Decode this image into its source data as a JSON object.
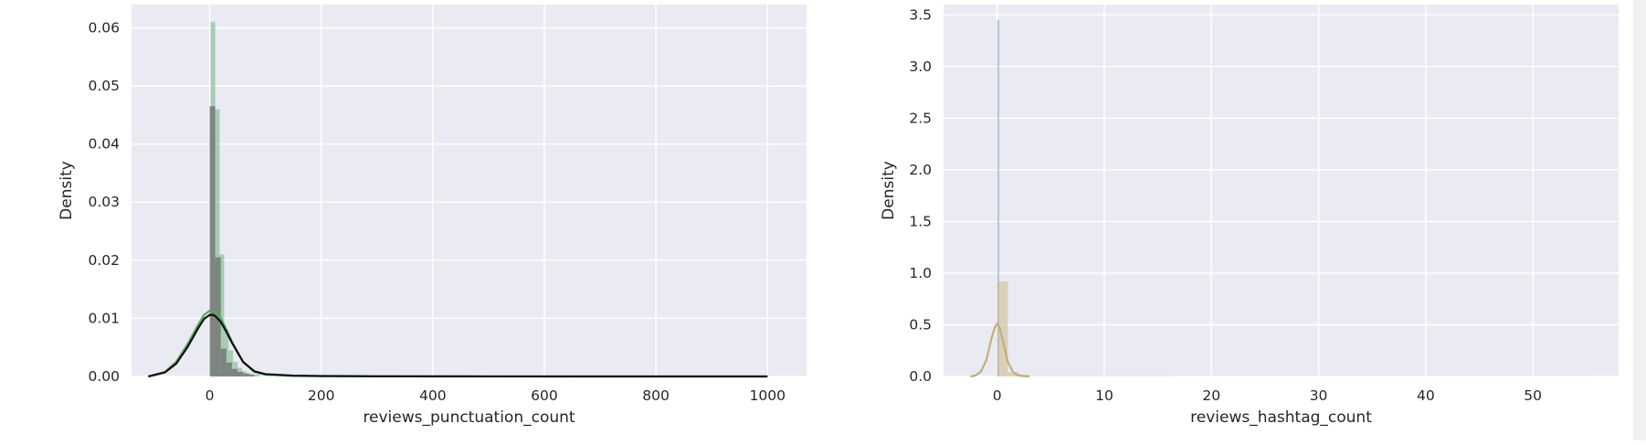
{
  "chart_data": [
    {
      "type": "histogram",
      "xlabel": "reviews_punctuation_count",
      "ylabel": "Density",
      "xlim": [
        -140,
        1070
      ],
      "ylim": [
        0,
        0.064
      ],
      "xticks": [
        0,
        200,
        400,
        600,
        800,
        1000
      ],
      "yticks": [
        0.0,
        0.01,
        0.02,
        0.03,
        0.04,
        0.05,
        0.06
      ],
      "ytick_labels": [
        "0.00",
        "0.01",
        "0.02",
        "0.03",
        "0.04",
        "0.05",
        "0.06"
      ],
      "grid": true,
      "colors": {
        "plot_bg": "#eaeaf2",
        "grid": "#ffffff",
        "hist_green": "#55a868",
        "hist_gray": "#6e6e6e",
        "kde_green": "#55a868",
        "kde_black": "#111111"
      },
      "series": [
        {
          "kind": "hist",
          "color": "#55a868",
          "opacity": 0.45,
          "bins": [
            {
              "x0": 2,
              "x1": 10,
              "y": 0.061
            },
            {
              "x0": 10,
              "x1": 18,
              "y": 0.046
            },
            {
              "x0": 18,
              "x1": 26,
              "y": 0.021
            },
            {
              "x0": 26,
              "x1": 34,
              "y": 0.008
            },
            {
              "x0": 34,
              "x1": 42,
              "y": 0.0045
            },
            {
              "x0": 42,
              "x1": 50,
              "y": 0.0025
            },
            {
              "x0": 50,
              "x1": 58,
              "y": 0.0015
            },
            {
              "x0": 58,
              "x1": 66,
              "y": 0.0009
            },
            {
              "x0": 66,
              "x1": 74,
              "y": 0.0006
            },
            {
              "x0": 74,
              "x1": 82,
              "y": 0.0004
            },
            {
              "x0": 82,
              "x1": 90,
              "y": 0.0003
            }
          ]
        },
        {
          "kind": "hist",
          "color": "#6e6e6e",
          "opacity": 0.75,
          "bins": [
            {
              "x0": 0,
              "x1": 10,
              "y": 0.0465
            },
            {
              "x0": 10,
              "x1": 20,
              "y": 0.0205
            },
            {
              "x0": 20,
              "x1": 30,
              "y": 0.0048
            },
            {
              "x0": 30,
              "x1": 40,
              "y": 0.0024
            },
            {
              "x0": 40,
              "x1": 50,
              "y": 0.0013
            },
            {
              "x0": 50,
              "x1": 60,
              "y": 0.0008
            },
            {
              "x0": 60,
              "x1": 70,
              "y": 0.0005
            },
            {
              "x0": 70,
              "x1": 80,
              "y": 0.0003
            }
          ]
        },
        {
          "kind": "kde",
          "color": "#55a868",
          "width": 2.2,
          "x": [
            -110,
            -80,
            -60,
            -40,
            -20,
            -10,
            0,
            6,
            10,
            20,
            30,
            40,
            60,
            80,
            100,
            150,
            200,
            300,
            500,
            700,
            1000
          ],
          "y": [
            0.0,
            0.0008,
            0.0025,
            0.0055,
            0.009,
            0.0106,
            0.0113,
            0.0113,
            0.0111,
            0.01,
            0.0081,
            0.006,
            0.0025,
            0.0008,
            0.0003,
            0.0001,
            5e-05,
            2e-05,
            1e-05,
            5e-06,
            0.0
          ]
        },
        {
          "kind": "kde",
          "color": "#111111",
          "width": 2.2,
          "x": [
            -110,
            -80,
            -60,
            -40,
            -20,
            -10,
            0,
            6,
            10,
            20,
            30,
            40,
            60,
            80,
            100,
            150,
            200,
            300,
            500,
            700,
            1000
          ],
          "y": [
            0.0,
            0.0007,
            0.0022,
            0.005,
            0.0084,
            0.0099,
            0.0106,
            0.0106,
            0.0104,
            0.0094,
            0.0077,
            0.0058,
            0.0025,
            0.0009,
            0.0004,
            0.00015,
            8e-05,
            3e-05,
            1e-05,
            5e-06,
            0.0
          ]
        }
      ]
    },
    {
      "type": "histogram",
      "xlabel": "reviews_hashtag_count",
      "ylabel": "Density",
      "xlim": [
        -5,
        58
      ],
      "ylim": [
        0,
        3.6
      ],
      "xticks": [
        0,
        10,
        20,
        30,
        40,
        50
      ],
      "yticks": [
        0.0,
        0.5,
        1.0,
        1.5,
        2.0,
        2.5,
        3.0,
        3.5
      ],
      "ytick_labels": [
        "0.0",
        "0.5",
        "1.0",
        "1.5",
        "2.0",
        "2.5",
        "3.0",
        "3.5"
      ],
      "grid": true,
      "colors": {
        "plot_bg": "#eaeaf2",
        "grid": "#ffffff",
        "hist_blue": "#4c72b0",
        "hist_tan": "#c9b98a",
        "kde_tan": "#c4ad7a"
      },
      "series": [
        {
          "kind": "hist",
          "color": "#4c72b0",
          "opacity": 0.35,
          "bins": [
            {
              "x0": 0.0,
              "x1": 0.2,
              "y": 3.45
            }
          ]
        },
        {
          "kind": "hist",
          "color": "#c9b98a",
          "opacity": 0.55,
          "bins": [
            {
              "x0": 0.0,
              "x1": 1.0,
              "y": 0.92
            },
            {
              "x0": 1.0,
              "x1": 2.0,
              "y": 0.04
            },
            {
              "x0": 2.0,
              "x1": 3.0,
              "y": 0.015
            },
            {
              "x0": 3.0,
              "x1": 16.0,
              "y": 0.004
            },
            {
              "x0": 16.0,
              "x1": 55.0,
              "y": 0.002
            }
          ]
        },
        {
          "kind": "kde",
          "color": "#c4ad7a",
          "width": 2.2,
          "x": [
            -2.5,
            -2,
            -1.5,
            -1,
            -0.5,
            -0.2,
            0,
            0.2,
            0.5,
            1,
            1.5,
            2,
            2.5,
            3
          ],
          "y": [
            0.0,
            0.01,
            0.05,
            0.16,
            0.38,
            0.48,
            0.51,
            0.48,
            0.36,
            0.14,
            0.04,
            0.01,
            0.003,
            0.0
          ]
        }
      ]
    }
  ]
}
